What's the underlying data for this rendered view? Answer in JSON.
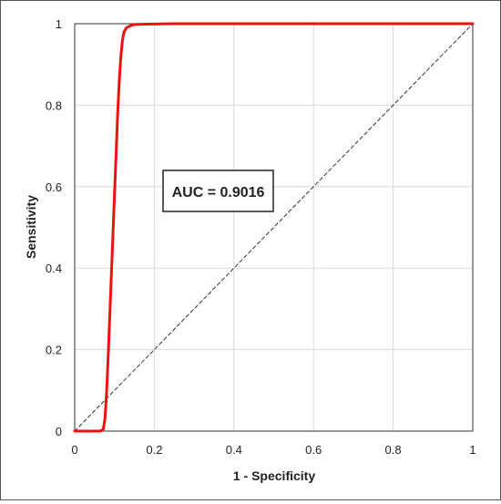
{
  "chart_data": {
    "type": "line",
    "title": "",
    "xlabel": "1 - Specificity",
    "ylabel": "Sensitivity",
    "xlim": [
      0,
      1
    ],
    "ylim": [
      0,
      1
    ],
    "xticks": [
      "0",
      "0.2",
      "0.4",
      "0.6",
      "0.8",
      "1"
    ],
    "yticks": [
      "0",
      "0.2",
      "0.4",
      "0.6",
      "0.8",
      "1"
    ],
    "grid": true,
    "legend": "none",
    "annotation": "AUC = 0.9016",
    "colors": {
      "roc": "#ee1111",
      "reference": "#333333",
      "grid": "#d9d9d9"
    },
    "series": [
      {
        "style": "solid",
        "x": [
          0,
          0.065,
          0.072,
          0.076,
          0.08,
          0.084,
          0.088,
          0.092,
          0.096,
          0.1,
          0.104,
          0.108,
          0.112,
          0.116,
          0.12,
          0.124,
          0.13,
          0.14,
          0.15,
          0.18,
          0.25,
          0.5,
          0.75,
          1
        ],
        "y": [
          0,
          0,
          0.005,
          0.03,
          0.09,
          0.18,
          0.28,
          0.38,
          0.48,
          0.58,
          0.68,
          0.78,
          0.86,
          0.92,
          0.96,
          0.98,
          0.99,
          0.995,
          0.998,
          0.999,
          1,
          1,
          1,
          1
        ]
      },
      {
        "style": "dashed",
        "x": [
          0,
          1
        ],
        "y": [
          0,
          1
        ]
      }
    ]
  }
}
